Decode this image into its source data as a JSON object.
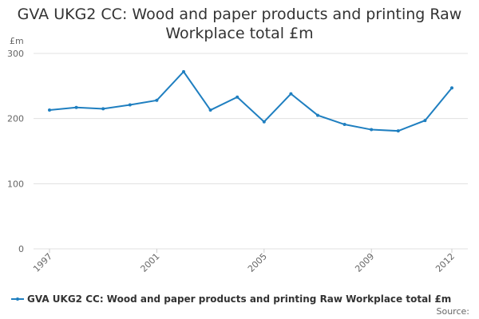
{
  "chart_data": {
    "type": "line",
    "title": "GVA UKG2 CC: Wood and paper products and printing Raw Workplace total £m",
    "y_label": "£m",
    "source": "Source:",
    "categories": [
      "1997",
      null,
      null,
      null,
      "2001",
      null,
      null,
      null,
      "2005",
      null,
      null,
      null,
      "2009",
      null,
      null,
      "2012"
    ],
    "series": [
      {
        "name": "GVA UKG2 CC: Wood and paper products and printing Raw Workplace total £m",
        "color": "#1f7fc0",
        "values": [
          213,
          217,
          215,
          221,
          228,
          272,
          213,
          233,
          195,
          238,
          205,
          191,
          183,
          181,
          197,
          247
        ]
      }
    ],
    "ylim": [
      0,
      300
    ],
    "yticks": [
      0,
      100,
      200,
      300
    ],
    "grid": true
  }
}
